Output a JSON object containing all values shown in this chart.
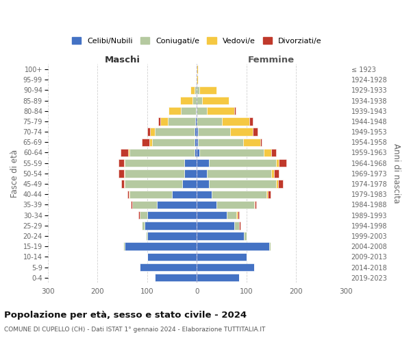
{
  "age_groups_bottom_to_top": [
    "0-4",
    "5-9",
    "10-14",
    "15-19",
    "20-24",
    "25-29",
    "30-34",
    "35-39",
    "40-44",
    "45-49",
    "50-54",
    "55-59",
    "60-64",
    "65-69",
    "70-74",
    "75-79",
    "80-84",
    "85-89",
    "90-94",
    "95-99",
    "100+"
  ],
  "birth_years_bottom_to_top": [
    "2019-2023",
    "2014-2018",
    "2009-2013",
    "2004-2008",
    "1999-2003",
    "1994-1998",
    "1989-1993",
    "1984-1988",
    "1979-1983",
    "1974-1978",
    "1969-1973",
    "1964-1968",
    "1959-1963",
    "1954-1958",
    "1949-1953",
    "1944-1948",
    "1939-1943",
    "1934-1938",
    "1929-1933",
    "1924-1928",
    "≤ 1923"
  ],
  "colors": {
    "celibi": "#4472C4",
    "coniugati": "#b5c9a0",
    "vedovi": "#f5c842",
    "divorziati": "#c0392b"
  },
  "maschi": {
    "celibi": [
      85,
      115,
      100,
      145,
      100,
      105,
      100,
      80,
      50,
      30,
      25,
      25,
      5,
      5,
      4,
      3,
      2,
      0,
      0,
      0,
      0
    ],
    "coniugati": [
      0,
      0,
      0,
      3,
      3,
      5,
      15,
      50,
      85,
      115,
      120,
      120,
      130,
      85,
      80,
      55,
      30,
      8,
      5,
      0,
      0
    ],
    "vedovi": [
      0,
      0,
      0,
      0,
      0,
      0,
      0,
      0,
      2,
      2,
      2,
      2,
      3,
      5,
      10,
      15,
      25,
      25,
      8,
      2,
      0
    ],
    "divorziati": [
      0,
      0,
      0,
      0,
      0,
      0,
      3,
      3,
      3,
      5,
      10,
      10,
      15,
      15,
      5,
      5,
      0,
      0,
      0,
      0,
      0
    ]
  },
  "femmine": {
    "celibi": [
      85,
      115,
      100,
      145,
      95,
      75,
      60,
      40,
      30,
      25,
      20,
      25,
      5,
      3,
      2,
      0,
      0,
      0,
      0,
      0,
      0
    ],
    "coniugati": [
      0,
      0,
      0,
      3,
      5,
      10,
      20,
      75,
      110,
      135,
      130,
      135,
      130,
      90,
      65,
      50,
      20,
      10,
      5,
      0,
      0
    ],
    "vedovi": [
      0,
      0,
      0,
      0,
      0,
      0,
      2,
      2,
      3,
      3,
      5,
      5,
      15,
      35,
      45,
      55,
      55,
      55,
      35,
      3,
      2
    ],
    "divorziati": [
      0,
      0,
      0,
      0,
      0,
      3,
      3,
      3,
      5,
      10,
      10,
      15,
      10,
      2,
      10,
      8,
      3,
      0,
      0,
      0,
      0
    ]
  },
  "xlim": 300,
  "title": "Popolazione per età, sesso e stato civile - 2024",
  "subtitle": "COMUNE DI CUPELLO (CH) - Dati ISTAT 1° gennaio 2024 - Elaborazione TUTTITALIA.IT",
  "xlabel_left": "Maschi",
  "xlabel_right": "Femmine",
  "ylabel_left": "Fasce di età",
  "ylabel_right": "Anni di nascita",
  "legend_labels": [
    "Celibi/Nubili",
    "Coniugati/e",
    "Vedovi/e",
    "Divorziati/e"
  ],
  "bg_color": "#ffffff",
  "grid_color": "#cccccc"
}
